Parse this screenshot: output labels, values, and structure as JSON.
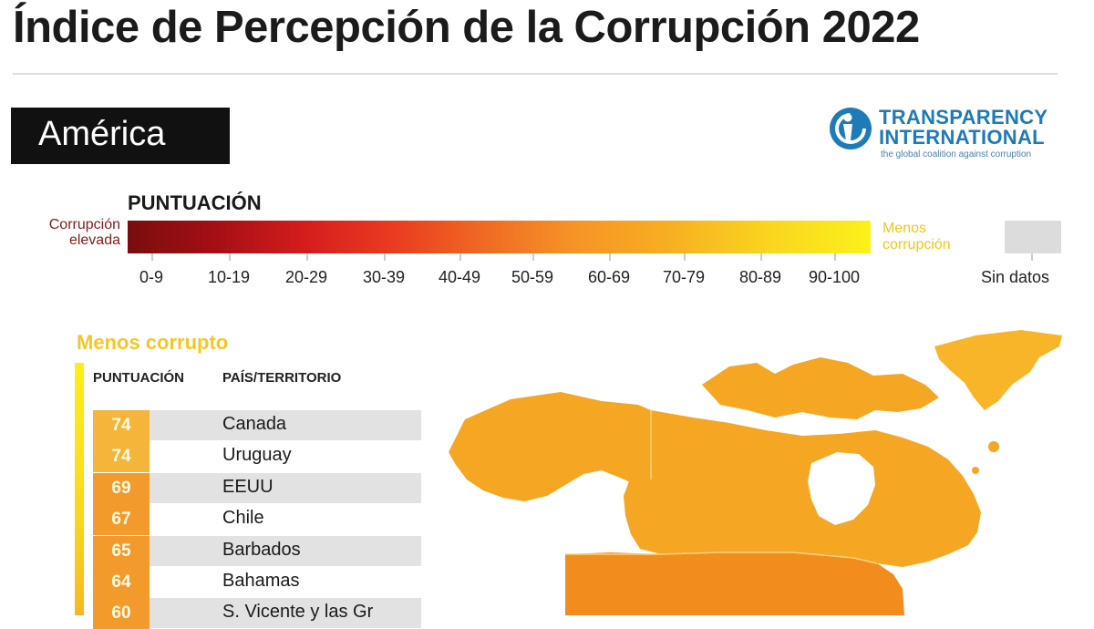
{
  "header": {
    "title": "Índice de Percepción de la Corrupción 2022"
  },
  "region": {
    "label": "América"
  },
  "logo": {
    "line1": "TRANSPARENCY",
    "line2": "INTERNATIONAL",
    "tagline": "the global coalition against corruption"
  },
  "legend": {
    "heading": "PUNTUACIÓN",
    "left_label_1": "Corrupción",
    "left_label_2": "elevada",
    "right_label_1": "Menos",
    "right_label_2": "corrupción",
    "no_data_label": "Sin datos",
    "ranges": [
      "0-9",
      "10-19",
      "20-29",
      "30-39",
      "40-49",
      "50-59",
      "60-69",
      "70-79",
      "80-89",
      "90-100"
    ]
  },
  "ranking": {
    "section_label": "Menos corrupto",
    "col_score": "PUNTUACIÓN",
    "col_country": "PAÍS/TERRITORIO",
    "rows": [
      {
        "score": "74",
        "country": "Canada"
      },
      {
        "score": "74",
        "country": "Uruguay"
      },
      {
        "score": "69",
        "country": "EEUU"
      },
      {
        "score": "67",
        "country": "Chile"
      },
      {
        "score": "65",
        "country": "Barbados"
      },
      {
        "score": "64",
        "country": "Bahamas"
      },
      {
        "score": "60",
        "country": "S. Vicente y las Gr"
      }
    ]
  },
  "colors": {
    "canada": "#f5a623",
    "usa": "#f28c1c",
    "greenland": "#f8b52a",
    "border": "#f9d27a",
    "score_70s": "#f5b53a",
    "score_60s": "#f29b2c"
  },
  "icons": {
    "logo": "transparency-international-logo-icon"
  }
}
